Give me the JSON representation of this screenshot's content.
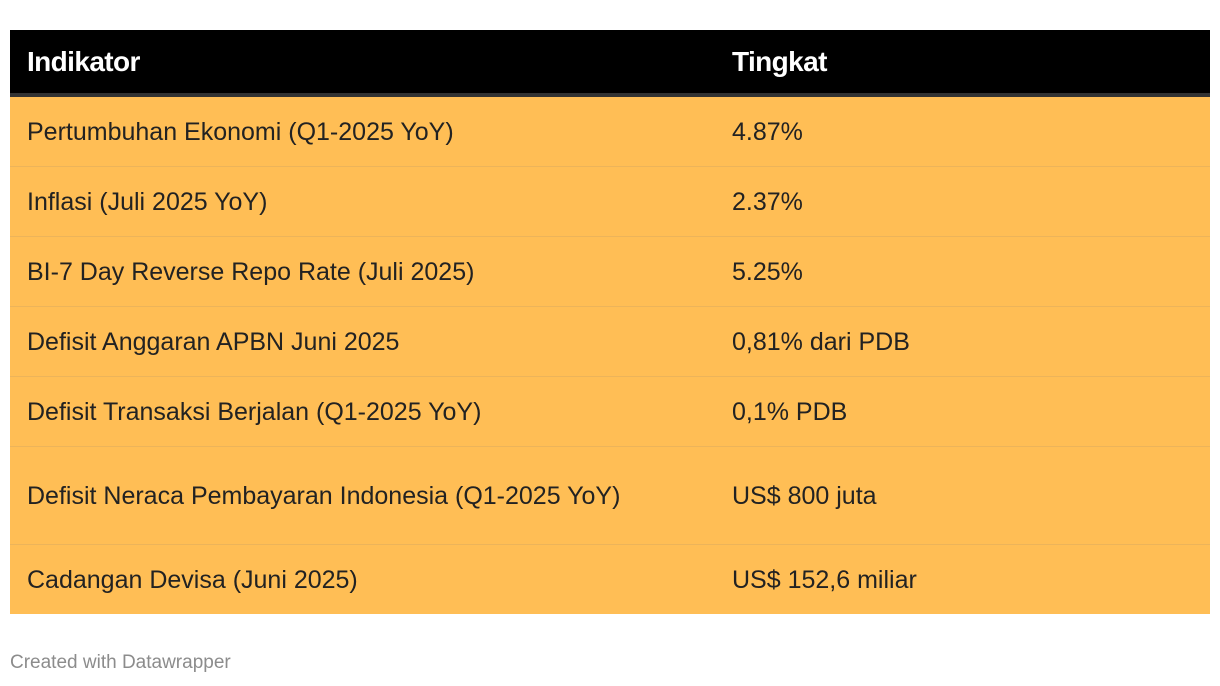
{
  "table": {
    "headers": [
      "Indikator",
      "Tingkat"
    ],
    "rows": [
      [
        "Pertumbuhan Ekonomi (Q1-2025 YoY)",
        "4.87%"
      ],
      [
        "Inflasi (Juli 2025 YoY)",
        "2.37%"
      ],
      [
        "BI-7 Day Reverse Repo Rate (Juli 2025)",
        "5.25%"
      ],
      [
        "Defisit Anggaran APBN Juni 2025",
        "0,81% dari PDB"
      ],
      [
        "Defisit Transaksi Berjalan (Q1-2025 YoY)",
        "0,1% PDB"
      ],
      [
        "Defisit Neraca Pembayaran Indonesia (Q1-2025 YoY)",
        "US$ 800 juta"
      ],
      [
        "Cadangan Devisa (Juni 2025)",
        "US$ 152,6 miliar"
      ]
    ]
  },
  "footer": {
    "credit": "Created with Datawrapper"
  },
  "colors": {
    "header_bg": "#000000",
    "header_text": "#ffffff",
    "row_bg": "#ffbe55",
    "row_text": "#222222",
    "credit_text": "#8c8c8c"
  }
}
